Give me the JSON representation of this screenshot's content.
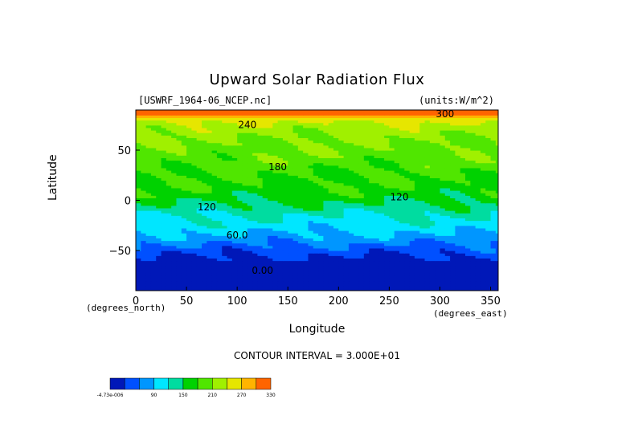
{
  "chart_data": {
    "type": "heatmap",
    "title": "Upward Solar Radiation Flux",
    "source_label": "[USWRF_1964-06_NCEP.nc]",
    "units_label": "(units:W/m^2)",
    "xlabel": "Longitude",
    "ylabel": "Latitude",
    "x_units_label": "(degrees_east)",
    "y_units_label": "(degrees_north)",
    "xlim": [
      0,
      357.5
    ],
    "ylim": [
      -90,
      90
    ],
    "x_ticks": [
      0,
      50,
      100,
      150,
      200,
      250,
      300,
      350
    ],
    "x_tick_labels": [
      "0",
      "50",
      "100",
      "150",
      "200",
      "250",
      "300",
      "350"
    ],
    "y_ticks": [
      -50,
      0,
      50
    ],
    "y_tick_labels": [
      "−50",
      "0",
      "50"
    ],
    "contour_interval_text": "CONTOUR INTERVAL = 3.000E+01",
    "contour_labels": [
      {
        "text": "300",
        "lon": 305,
        "lat": 83
      },
      {
        "text": "240",
        "lon": 110,
        "lat": 72
      },
      {
        "text": "180",
        "lon": 140,
        "lat": 30
      },
      {
        "text": "120",
        "lon": 70,
        "lat": -10
      },
      {
        "text": "120",
        "lon": 260,
        "lat": 0
      },
      {
        "text": "60.0",
        "lon": 100,
        "lat": -38
      },
      {
        "text": "0.00",
        "lon": 125,
        "lat": -73
      }
    ],
    "colorbar": {
      "levels": [
        0,
        30,
        60,
        90,
        120,
        150,
        180,
        210,
        240,
        270,
        300,
        330
      ],
      "tick_labels": [
        "-4.73e-006",
        "90",
        "150",
        "210",
        "270",
        "330"
      ],
      "tick_values": [
        0,
        90,
        150,
        210,
        270,
        330
      ],
      "colors": [
        "#0018b8",
        "#0050ff",
        "#0096ff",
        "#00e6ff",
        "#00dca0",
        "#00d200",
        "#50e600",
        "#a0f000",
        "#e6e600",
        "#ffb400",
        "#ff6400",
        "#ff2800"
      ]
    },
    "latitude_profile": {
      "lat": [
        -90,
        -80,
        -70,
        -65,
        -55,
        -45,
        -35,
        -25,
        -15,
        -5,
        5,
        15,
        25,
        35,
        45,
        55,
        65,
        75,
        80,
        85,
        90
      ],
      "value": [
        0,
        0,
        0,
        5,
        30,
        55,
        85,
        105,
        120,
        145,
        165,
        175,
        180,
        190,
        200,
        205,
        215,
        230,
        250,
        300,
        300
      ]
    }
  }
}
